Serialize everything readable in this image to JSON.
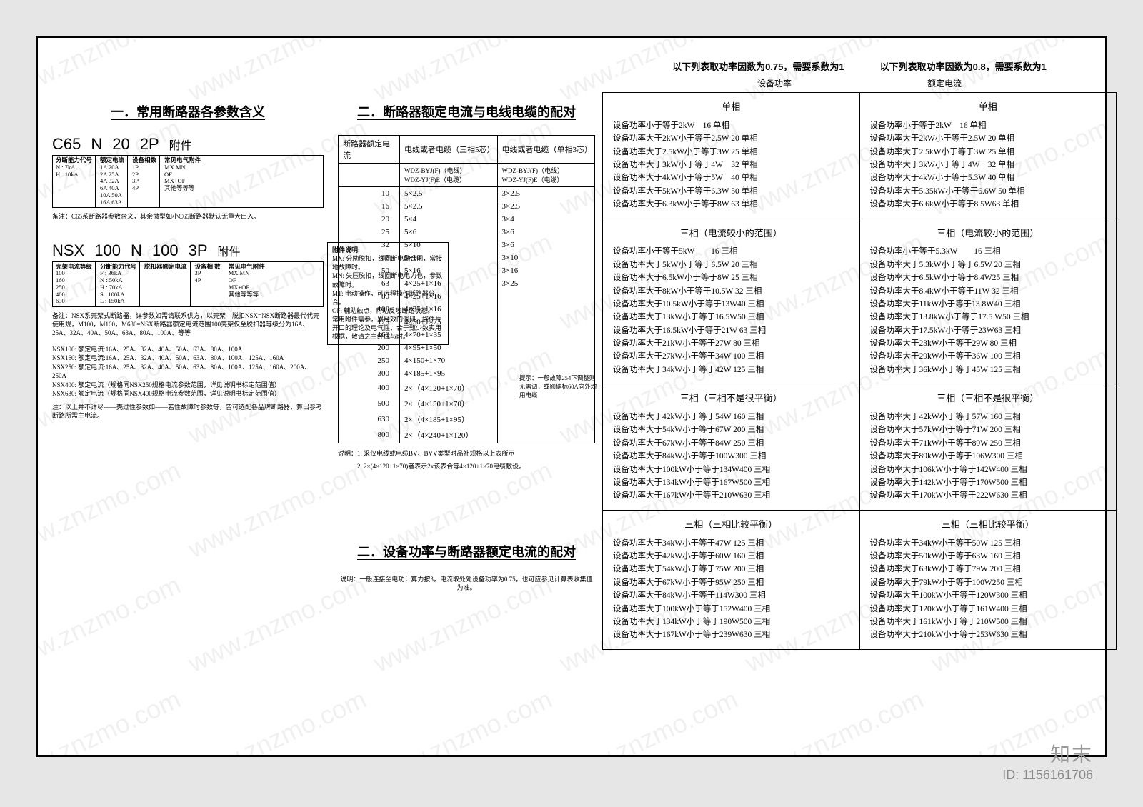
{
  "watermark_text": "www.znzmo.com",
  "watermark_logo": "知末",
  "watermark_id": "ID: 1156161706",
  "col1": {
    "title": "一．常用断路器各参数含义",
    "c65": {
      "parts": [
        "C65",
        "N",
        "20",
        "2P"
      ],
      "suffix": "附件",
      "boxes": [
        {
          "hdr": "分断能力代号",
          "lines": [
            "N : 7kA",
            "H : 10kA"
          ]
        },
        {
          "hdr": "额定电流",
          "lines": [
            "1A  20A",
            "2A  25A",
            "4A  32A",
            "6A  40A",
            "10A 50A",
            "16A 63A"
          ]
        },
        {
          "hdr": "设备相数",
          "lines": [
            "1P",
            "2P",
            "3P",
            "4P"
          ]
        },
        {
          "hdr": "常见电气附件",
          "lines": [
            "MX  MN",
            "OF",
            "MX+OF",
            "其他等等等"
          ]
        }
      ],
      "note": "备注：C65系断路器参数含义，其余微型如小C65断路器默认无重大出入。"
    },
    "nsx": {
      "parts": [
        "NSX",
        "100",
        "N",
        "100",
        "3P"
      ],
      "suffix": "附件",
      "boxes": [
        {
          "hdr": "壳架电流等级",
          "lines": [
            "100",
            "160",
            "250",
            "400",
            "630"
          ]
        },
        {
          "hdr": "分断能力代号",
          "lines": [
            "F : 36kA",
            "N : 50kA",
            "H : 70kA",
            "S : 100kA",
            "L : 150kA"
          ]
        },
        {
          "hdr": "脱扣器额定电流",
          "lines": [
            ""
          ]
        },
        {
          "hdr": "设备相\n数",
          "lines": [
            "3P",
            "4P"
          ]
        },
        {
          "hdr": "常见电气附件",
          "lines": [
            "MX  MN",
            "OF",
            "MX+OF",
            "其他等等等"
          ]
        }
      ],
      "note": "备注：NSX系壳架式断路器，详参数如需请联系供方，以壳架—脱扣NSX=NSX断路器最代代壳使用规，M100，M100，M630=NSX断路器额定电流范围100壳架仅至脱扣器等级分为16A、25A、32A、40A、50A、63A、80A、100A、等等",
      "list": [
        "NSX100: 额定电流:16A、25A、32A、40A、50A、63A、80A、100A",
        "NSX160: 额定电流:16A、25A、32A、40A、50A、63A、80A、100A、125A、160A",
        "NSX250: 额定电流:16A、25A、32A、40A、50A、63A、80A、100A、125A、160A、200A、250A",
        "NSX400: 额定电流（规格同NSX250规格电流参数范围，详见说明书标定范围值）",
        "NSX630: 额定电流（规格同NSX400规格电流参数范围，详见说明书标定范围值）"
      ],
      "bottom_note": "注：以上并不详尽——壳过性参数如——若性故障时参数等，皆可选配各品牌断路器，算出参考断路所需主电流。"
    },
    "aux": {
      "hdr": "附件说明:",
      "lines": [
        "MX: 分励脱扣，线圈断电励合闸，常接地故障时。",
        "MN: 失压脱扣，线圈断电电力也，参数故障时。",
        "MT: 电动操作，可远程操作断路器分合。",
        "OF: 辅助触点，帮助反映断路状态。",
        "常用附件需参，累经效的调研，袋件片开口的理论及电气性，合于甄少数实用根据，敬请之主经成与时。"
      ]
    }
  },
  "col2": {
    "title": "二．断路器额定电流与电线电缆的配对",
    "th": [
      "断路器额定电流",
      "电线或者电缆（三相5芯）",
      "电线或者电缆（单相3芯）"
    ],
    "sub1": "WDZ-BYJ(F)（电线）\nWDZ-YJ(F)E（电缆）",
    "sub2": "WDZ-BYJ(F)（电线）\nWDZ-YJ(F)E（电缆）",
    "rows": [
      [
        "10",
        "5×2.5",
        "3×2.5"
      ],
      [
        "16",
        "5×2.5",
        "3×2.5"
      ],
      [
        "20",
        "5×4",
        "3×4"
      ],
      [
        "25",
        "5×6",
        "3×6"
      ],
      [
        "32",
        "5×10",
        "3×6"
      ],
      [
        "40",
        "5×10",
        "3×10"
      ],
      [
        "50",
        "5×16",
        "3×16"
      ],
      [
        "63",
        "4×25+1×16",
        "3×25"
      ],
      [
        "80",
        "4×25+1×16",
        ""
      ],
      [
        "100",
        "4×35+1×16",
        ""
      ],
      [
        "125",
        "4×50+1×25",
        ""
      ],
      [
        "160",
        "4×70+1×35",
        ""
      ],
      [
        "200",
        "4×95+1×50",
        ""
      ],
      [
        "250",
        "4×150+1×70",
        ""
      ],
      [
        "300",
        "4×185+1×95",
        ""
      ],
      [
        "400",
        "2×（4×120+1×70）",
        ""
      ],
      [
        "500",
        "2×（4×150+1×70）",
        ""
      ],
      [
        "630",
        "2×（4×185+1×95）",
        ""
      ],
      [
        "800",
        "2×（4×240+1×120）",
        ""
      ]
    ],
    "side_note": "提示：一般故障254下调整则无需调，或额健标60A向外均用电缆",
    "below1": "说明：1. 采仅电线或电缆BV、BVV类型时品补规格以上表所示",
    "below2": "　　　2. 2×(4×120+1×70)者表示2x该表合等4×120+1×70电缆敷设。",
    "title3": "二．设备功率与断路器额定电流的配对",
    "below3": "说明：一般连接至电功计算力按3，电流取处处设备功率为0.75，也可应参见计算表收集值为准。"
  },
  "col3": {
    "hdr_left": "以下列表取功率因数为0.75，需要系数为1",
    "hdr_right": "以下列表取功率因数为0.8，需要系数为1",
    "sub_left": "设备功率",
    "sub_right": "额定电流",
    "sections": [
      {
        "title": "单相",
        "left": [
          "设备功率小于等于2kW　16 单相",
          "设备功率大于2kW小于等于2.5W 20 单相",
          "设备功率大于2.5kW小于等于3W 25 单相",
          "设备功率大于3kW小于等于4W　32 单相",
          "设备功率大于4kW小于等于5W　40 单相",
          "设备功率大于5kW小于等于6.3W 50 单相",
          "设备功率大于6.3kW小于等于8W 63 单相"
        ],
        "right": [
          "设备功率小于等于2kW　16 单相",
          "设备功率大于2kW小于等于2.5W 20 单相",
          "设备功率大于2.5kW小于等于3W 25 单相",
          "设备功率大于3kW小于等于4W　32 单相",
          "设备功率大于4kW小于等于5.3W 40 单相",
          "设备功率大于5.35kW小于等于6.6W 50 单相",
          "设备功率大于6.6kW小于等于8.5W63 单相"
        ]
      },
      {
        "title_l": "三相（电流较小的范围）",
        "title_r": "三相（电流较小的范围）",
        "left": [
          "设备功率小于等于5kW　　16 三相",
          "设备功率大于5kW小于等于6.5W 20 三相",
          "设备功率大于6.5kW小于等于8W 25 三相",
          "设备功率大于8kW小于等于10.5W 32 三相",
          "设备功率大于10.5kW小于等于13W40 三相",
          "设备功率大于13kW小于等于16.5W50 三相",
          "设备功率大于16.5kW小于等于21W 63 三相",
          "设备功率大于21kW小于等于27W 80 三相",
          "设备功率大于27kW小于等于34W 100 三相",
          "设备功率大于34kW小于等于42W 125 三相"
        ],
        "right": [
          "设备功率小于等于5.3kW　　16 三相",
          "设备功率大于5.3kW小于等于6.5W 20 三相",
          "设备功率大于6.5kW小于等于8.4W25 三相",
          "设备功率大于8.4kW小于等于11W 32 三相",
          "设备功率大于11kW小于等于13.8W40 三相",
          "设备功率大于13.8kW小于等于17.5 W50 三相",
          "设备功率大于17.5kW小于等于23W63 三相",
          "设备功率大于23kW小于等于29W 80 三相",
          "设备功率大于29kW小于等于36W 100 三相",
          "设备功率大于36kW小于等于45W 125 三相"
        ]
      },
      {
        "title_l": "三相（三相不是很平衡）",
        "title_r": "三相（三相不是很平衡）",
        "left": [
          "设备功率大于42kW小于等于54W 160 三相",
          "设备功率大于54kW小于等于67W 200 三相",
          "设备功率大于67kW小于等于84W 250 三相",
          "设备功率大于84kW小于等于100W300 三相",
          "设备功率大于100kW小于等于134W400 三相",
          "设备功率大于134kW小于等于167W500 三相",
          "设备功率大于167kW小于等于210W630 三相"
        ],
        "right": [
          "设备功率大于42kW小于等于57W 160 三相",
          "设备功率大于57kW小于等于71W 200 三相",
          "设备功率大于71kW小于等于89W 250 三相",
          "设备功率大于89kW小于等于106W300 三相",
          "设备功率大于106kW小于等于142W400 三相",
          "设备功率大于142kW小于等于170W500 三相",
          "设备功率大于170kW小于等于222W630 三相"
        ]
      },
      {
        "title_l": "三相（三相比较平衡）",
        "title_r": "三相（三相比较平衡）",
        "left": [
          "设备功率大于34kW小于等于47W 125 三相",
          "设备功率大于42kW小于等于60W 160 三相",
          "设备功率大于54kW小于等于75W 200 三相",
          "设备功率大于67kW小于等于95W 250 三相",
          "设备功率大于84kW小于等于114W300 三相",
          "设备功率大于100kW小于等于152W400 三相",
          "设备功率大于134kW小于等于190W500 三相",
          "设备功率大于167kW小于等于239W630 三相"
        ],
        "right": [
          "设备功率大于34kW小于等于50W 125 三相",
          "设备功率大于50kW小于等于63W 160 三相",
          "设备功率大于63kW小于等于79W 200 三相",
          "设备功率大于79kW小于等于100W250 三相",
          "设备功率大于100kW小于等于120W300 三相",
          "设备功率大于120kW小于等于161W400 三相",
          "设备功率大于161kW小于等于210W500 三相",
          "设备功率大于210kW小于等于253W630 三相"
        ]
      }
    ]
  }
}
